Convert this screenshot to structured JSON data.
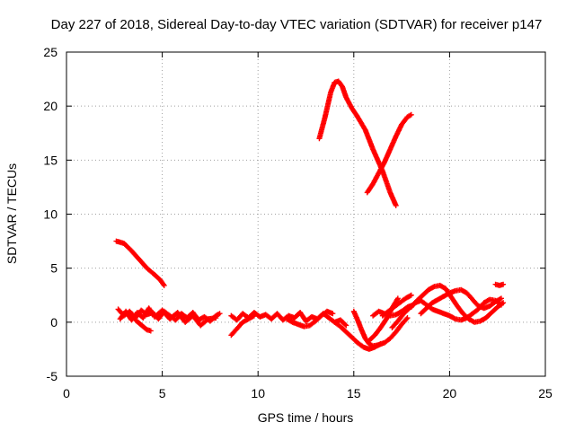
{
  "chart_data": {
    "type": "scatter",
    "title": "Day 227 of 2018, Sidereal Day-to-day VTEC variation (SDTVAR) for receiver p147",
    "xlabel": "GPS time / hours",
    "ylabel": "SDTVAR / TECUs",
    "xlim": [
      0,
      25
    ],
    "ylim": [
      -5,
      25
    ],
    "xticks": [
      "0",
      "5",
      "10",
      "15",
      "20",
      "25"
    ],
    "yticks": [
      "-5",
      "0",
      "5",
      "10",
      "15",
      "20",
      "25"
    ],
    "grid": true,
    "marker": "+",
    "color": "#ff0000",
    "series": [
      {
        "x": [
          2.6,
          3.0,
          3.4,
          3.8,
          4.2,
          4.6,
          4.9,
          5.1
        ],
        "y": [
          7.5,
          7.3,
          6.6,
          5.8,
          5.0,
          4.4,
          3.9,
          3.4
        ]
      },
      {
        "x": [
          13.2,
          13.5,
          13.8,
          14.0,
          14.2,
          14.4,
          14.6,
          14.9,
          15.2,
          15.6,
          16.0,
          16.5,
          16.9,
          17.2
        ],
        "y": [
          17.0,
          19.0,
          21.3,
          22.2,
          22.3,
          21.8,
          20.8,
          19.8,
          19.0,
          17.8,
          16.0,
          14.0,
          12.0,
          10.8
        ]
      },
      {
        "x": [
          15.7,
          16.0,
          16.3,
          16.6,
          16.9,
          17.2,
          17.5,
          17.8,
          18.0
        ],
        "y": [
          12.0,
          12.8,
          13.8,
          14.8,
          16.0,
          17.2,
          18.3,
          19.0,
          19.2
        ]
      },
      {
        "x": [
          2.7,
          3.0,
          3.3,
          3.6,
          3.9,
          4.2,
          4.5,
          4.8,
          5.1,
          5.4,
          5.7,
          6.0,
          6.3,
          6.6,
          6.9,
          7.2,
          7.5,
          7.8,
          8.0
        ],
        "y": [
          1.2,
          0.6,
          1.0,
          0.4,
          1.1,
          0.7,
          0.9,
          0.3,
          1.0,
          0.6,
          0.2,
          0.8,
          0.4,
          0.9,
          0.2,
          0.5,
          0.1,
          0.6,
          0.8
        ]
      },
      {
        "x": [
          2.8,
          3.1,
          3.4,
          3.7,
          4.0,
          4.3,
          4.6,
          5.0,
          5.4,
          5.8,
          6.2,
          6.6,
          7.0,
          7.4,
          7.8
        ],
        "y": [
          0.3,
          1.0,
          0.2,
          0.9,
          0.4,
          1.3,
          0.5,
          1.1,
          0.3,
          0.9,
          0.0,
          0.6,
          -0.3,
          0.3,
          0.4
        ]
      },
      {
        "x": [
          3.6,
          3.8,
          4.0,
          4.2,
          4.4
        ],
        "y": [
          0.2,
          -0.1,
          -0.4,
          -0.7,
          -0.8
        ]
      },
      {
        "x": [
          8.6,
          8.9,
          9.2,
          9.5,
          9.8,
          10.1,
          10.4,
          10.7,
          11.0,
          11.3,
          11.6,
          11.9,
          12.2,
          12.5,
          12.8,
          13.1,
          13.4,
          13.7,
          14.0,
          14.3,
          14.6
        ],
        "y": [
          0.6,
          0.2,
          0.8,
          0.4,
          0.9,
          0.5,
          0.7,
          0.3,
          0.8,
          0.2,
          0.6,
          0.4,
          0.9,
          0.1,
          0.5,
          0.3,
          0.8,
          0.4,
          0.0,
          0.2,
          -0.3
        ]
      },
      {
        "x": [
          8.6,
          8.8,
          9.0,
          9.2,
          9.5,
          9.8
        ],
        "y": [
          -1.2,
          -0.8,
          -0.4,
          0.0,
          0.3,
          0.6
        ]
      },
      {
        "x": [
          11.5,
          11.8,
          12.1,
          12.4,
          12.7,
          13.0,
          13.3,
          13.6,
          13.9
        ],
        "y": [
          0.3,
          0.0,
          -0.2,
          -0.4,
          -0.3,
          0.1,
          0.6,
          1.0,
          0.8
        ]
      },
      {
        "x": [
          14.0,
          14.3,
          14.6,
          14.9,
          15.2,
          15.5,
          15.8,
          16.1,
          16.4
        ],
        "y": [
          0.0,
          -0.4,
          -0.9,
          -1.4,
          -1.9,
          -2.3,
          -2.5,
          -2.3,
          -2.0
        ]
      },
      {
        "x": [
          15.0,
          15.2,
          15.4,
          15.6,
          15.8,
          16.0,
          16.3,
          16.6,
          16.9,
          17.2,
          17.5,
          17.8
        ],
        "y": [
          1.0,
          0.2,
          -0.7,
          -1.5,
          -2.0,
          -2.2,
          -2.1,
          -1.9,
          -1.5,
          -0.9,
          -0.2,
          0.4
        ]
      },
      {
        "x": [
          15.8,
          16.1,
          16.4,
          16.7,
          17.0,
          17.3
        ],
        "y": [
          -1.7,
          -1.2,
          -0.5,
          0.3,
          1.3,
          2.2
        ]
      },
      {
        "x": [
          16.0,
          16.3,
          16.6,
          16.9,
          17.2,
          17.5,
          17.8,
          18.1
        ],
        "y": [
          0.6,
          1.0,
          0.8,
          0.6,
          0.7,
          1.0,
          1.4,
          1.6
        ]
      },
      {
        "x": [
          16.5,
          16.8,
          17.1,
          17.4,
          17.7,
          18.0
        ],
        "y": [
          0.6,
          1.0,
          1.4,
          1.8,
          2.2,
          2.5
        ]
      },
      {
        "x": [
          17.0,
          17.3,
          17.6,
          17.9,
          18.2,
          18.5,
          18.8,
          19.1,
          19.4,
          19.7,
          20.0,
          20.3,
          20.6,
          20.9,
          21.2,
          21.5,
          21.8,
          22.1,
          22.4,
          22.7
        ],
        "y": [
          -0.5,
          0.1,
          0.8,
          1.3,
          1.8,
          2.0,
          1.6,
          1.2,
          1.0,
          0.8,
          0.6,
          0.3,
          0.2,
          0.4,
          0.8,
          1.2,
          1.8,
          2.1,
          2.0,
          1.6
        ]
      },
      {
        "x": [
          18.0,
          18.3,
          18.6,
          18.9,
          19.2,
          19.5,
          19.8,
          20.1,
          20.4,
          20.7,
          21.0,
          21.3,
          21.6,
          21.9,
          22.2,
          22.5,
          22.8
        ],
        "y": [
          1.4,
          2.0,
          2.5,
          3.0,
          3.3,
          3.4,
          3.1,
          2.3,
          1.5,
          0.8,
          0.3,
          0.0,
          0.1,
          0.4,
          0.9,
          1.4,
          1.8
        ]
      },
      {
        "x": [
          18.5,
          18.8,
          19.1,
          19.4,
          19.7,
          20.0,
          20.3,
          20.6,
          20.9,
          21.2,
          21.5,
          21.8,
          22.1,
          22.4,
          22.7
        ],
        "y": [
          0.8,
          1.3,
          1.8,
          2.1,
          2.4,
          2.7,
          2.9,
          3.0,
          2.7,
          2.1,
          1.5,
          1.3,
          1.5,
          1.9,
          2.2
        ]
      },
      {
        "x": [
          22.4,
          22.6,
          22.8
        ],
        "y": [
          3.5,
          3.4,
          3.5
        ]
      }
    ]
  }
}
